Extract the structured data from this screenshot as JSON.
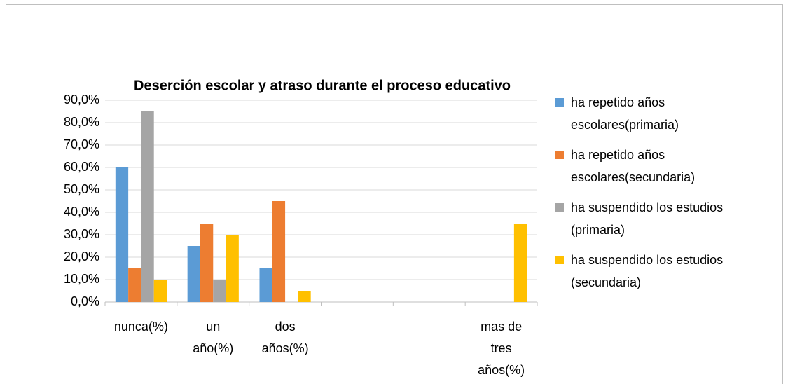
{
  "chart_data": {
    "type": "bar",
    "title": "Deserción escolar y atraso durante el proceso educativo",
    "categories": [
      "nunca(%)",
      "un año(%)",
      "dos años(%)",
      null,
      null,
      "mas de tres años(%)"
    ],
    "series": [
      {
        "name": "ha repetido años escolares(primaria)",
        "color": "#5b9bd5",
        "values": [
          60,
          25,
          15,
          null,
          null,
          null
        ]
      },
      {
        "name": "ha repetido años escolares(secundaria)",
        "color": "#ed7d31",
        "values": [
          15,
          35,
          45,
          null,
          null,
          null
        ]
      },
      {
        "name": "ha suspendido los estudios (primaria)",
        "color": "#a5a5a5",
        "values": [
          85,
          10,
          null,
          null,
          null,
          null
        ]
      },
      {
        "name": "ha suspendido los estudios (secundaria)",
        "color": "#ffc000",
        "values": [
          10,
          30,
          5,
          null,
          null,
          35
        ]
      }
    ],
    "ylim": [
      0,
      90
    ],
    "yticks": [
      {
        "value": 0,
        "label": "0,0%"
      },
      {
        "value": 10,
        "label": "10,0%"
      },
      {
        "value": 20,
        "label": "20,0%"
      },
      {
        "value": 30,
        "label": "30,0%"
      },
      {
        "value": 40,
        "label": "40,0%"
      },
      {
        "value": 50,
        "label": "50,0%"
      },
      {
        "value": 60,
        "label": "60,0%"
      },
      {
        "value": 70,
        "label": "70,0%"
      },
      {
        "value": 80,
        "label": "80,0%"
      },
      {
        "value": 90,
        "label": "90,0%"
      }
    ],
    "grid": true,
    "legend": "right"
  }
}
